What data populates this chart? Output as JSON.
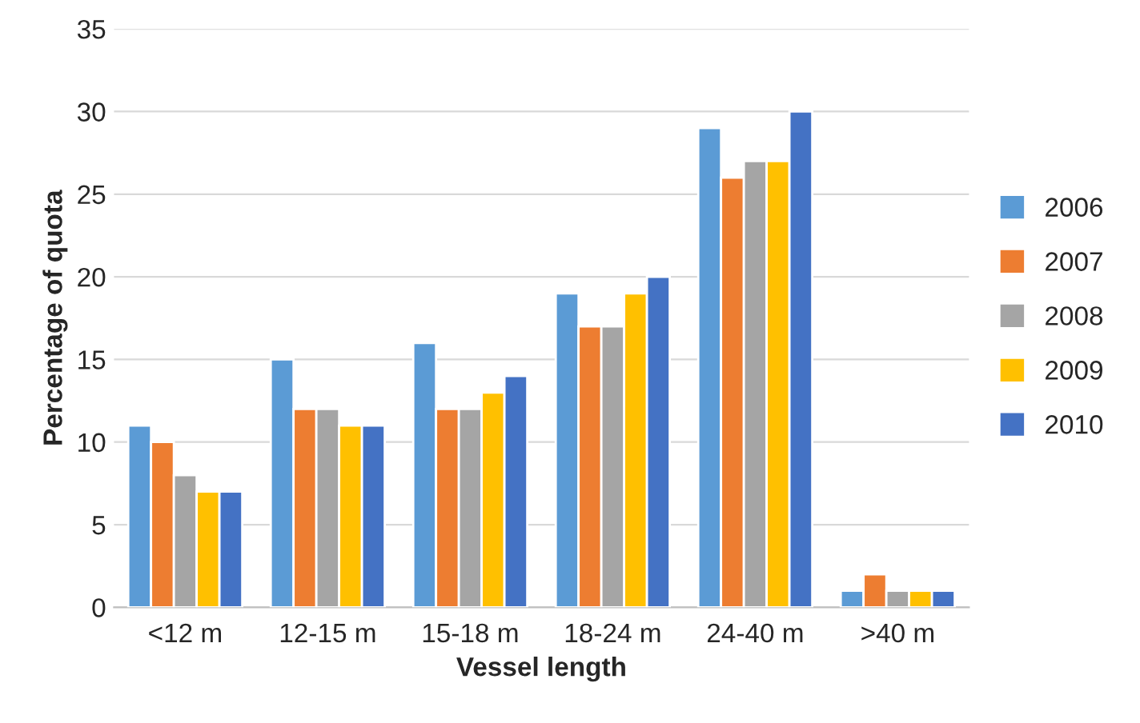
{
  "chart_data": {
    "type": "bar",
    "xlabel": "Vessel length",
    "ylabel": "Percentage of quota",
    "categories": [
      "<12 m",
      "12-15 m",
      "15-18 m",
      "18-24 m",
      "24-40 m",
      ">40 m"
    ],
    "series": [
      {
        "name": "2006",
        "color": "#5b9bd5",
        "values": [
          11,
          15,
          16,
          19,
          29,
          1
        ]
      },
      {
        "name": "2007",
        "color": "#ed7d31",
        "values": [
          10,
          12,
          12,
          17,
          26,
          2
        ]
      },
      {
        "name": "2008",
        "color": "#a5a5a5",
        "values": [
          8,
          12,
          12,
          17,
          27,
          1
        ]
      },
      {
        "name": "2009",
        "color": "#ffc000",
        "values": [
          7,
          11,
          13,
          19,
          27,
          1
        ]
      },
      {
        "name": "2010",
        "color": "#4472c4",
        "values": [
          7,
          11,
          14,
          20,
          30,
          1
        ]
      }
    ],
    "ylim": [
      0,
      35
    ],
    "yticks": [
      0,
      5,
      10,
      15,
      20,
      25,
      30,
      35
    ],
    "grid": "y",
    "legend": "right"
  }
}
